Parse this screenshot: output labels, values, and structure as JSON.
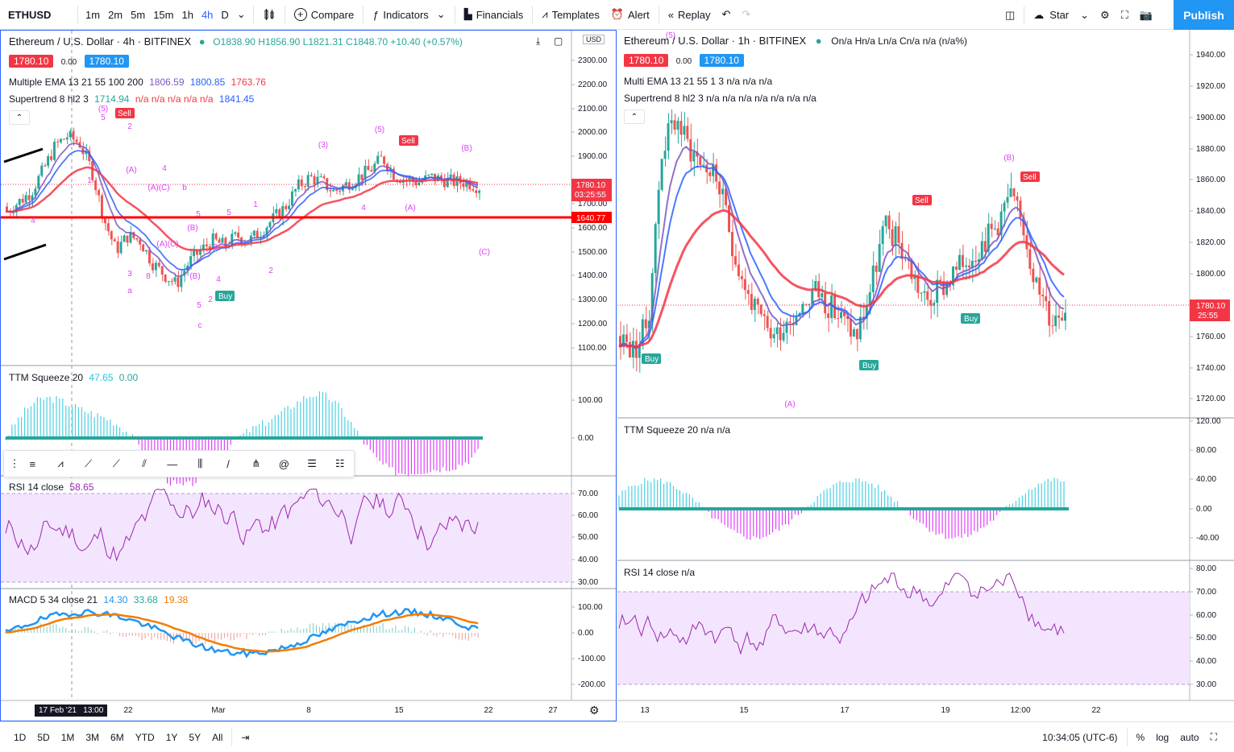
{
  "toolbar": {
    "symbol": "ETHUSD",
    "timeframes": [
      "1m",
      "2m",
      "5m",
      "15m",
      "1h",
      "4h",
      "D"
    ],
    "active_timeframe": "4h",
    "compare": "Compare",
    "indicators": "Indicators",
    "financials": "Financials",
    "templates": "Templates",
    "alert": "Alert",
    "replay": "Replay",
    "star": "Star",
    "publish": "Publish"
  },
  "left_chart": {
    "title": "Ethereum / U.S. Dollar · 4h · BITFINEX",
    "ohlc": "O1838.90 H1856.90 L1821.31 C1848.70 +10.40 (+0.57%)",
    "bid": "1780.10",
    "spread": "0.00",
    "ask": "1780.10",
    "ema_label": "Multiple EMA 13 21 55 100 200",
    "ema_values": [
      "1806.59",
      "1800.85",
      "1763.76"
    ],
    "supertrend_label": "Supertrend 8 hl2 3",
    "supertrend_values": [
      "1714.94",
      "n/a n/a n/a n/a n/a",
      "1841.45"
    ],
    "price_axis": [
      "2300.00",
      "2200.00",
      "2100.00",
      "2000.00",
      "1900.00",
      "1700.00",
      "1600.00",
      "1500.00",
      "1400.00",
      "1300.00",
      "1200.00",
      "1100.00"
    ],
    "axis_currency": "USD",
    "price_label": "1780.10",
    "countdown": "03:25:55",
    "hline_label": "1640.77",
    "ttm_label": "TTM Squeeze 20",
    "ttm_values": [
      "47.65",
      "0.00"
    ],
    "ttm_axis": [
      "100.00",
      "0.00"
    ],
    "rsi_label": "RSI 14 close",
    "rsi_value": "58.65",
    "rsi_axis": [
      "70.00",
      "60.00",
      "50.00",
      "40.00",
      "30.00"
    ],
    "macd_label": "MACD 5 34 close 21",
    "macd_values": [
      "14.30",
      "33.68",
      "19.38"
    ],
    "macd_axis": [
      "100.00",
      "0.00",
      "-100.00",
      "-200.00"
    ],
    "time_axis": [
      "22",
      "Mar",
      "8",
      "15",
      "22",
      "27"
    ],
    "crosshair_time": "17 Feb '21   13:00",
    "annotations": {
      "sell": "Sell",
      "buy": "Buy",
      "waves": [
        "(5)",
        "5",
        "2",
        "(A)",
        "4",
        "b",
        "(A)(C)",
        "(B)",
        "(A)(C)",
        "3",
        "4",
        "(B)",
        "3",
        "8",
        "a",
        "5",
        "c",
        "2",
        "(5)",
        "(3)",
        "4",
        "(A)",
        "1",
        "2",
        "5",
        "(B)",
        "(C)",
        "1",
        "4",
        "5"
      ]
    }
  },
  "right_chart": {
    "title": "Ethereum / U.S. Dollar · 1h · BITFINEX",
    "ohlc": "On/a Hn/a Ln/a Cn/a n/a (n/a%)",
    "bid": "1780.10",
    "spread": "0.00",
    "ask": "1780.10",
    "ema_label": "Multi EMA 13 21 55 1 3  n/a n/a n/a",
    "supertrend_label": "Supertrend 8 hl2 3  n/a n/a n/a n/a n/a n/a n/a",
    "price_axis": [
      "1940.00",
      "1920.00",
      "1900.00",
      "1880.00",
      "1860.00",
      "1840.00",
      "1820.00",
      "1800.00",
      "1760.00",
      "1740.00",
      "1720.00"
    ],
    "price_label": "1780.10",
    "countdown": "25:55",
    "ttm_label": "TTM Squeeze 20  n/a n/a",
    "ttm_axis": [
      "120.00",
      "80.00",
      "40.00",
      "0.00",
      "-40.00"
    ],
    "rsi_label": "RSI 14 close  n/a",
    "rsi_axis": [
      "80.00",
      "70.00",
      "60.00",
      "50.00",
      "40.00",
      "30.00"
    ],
    "time_axis": [
      "13",
      "15",
      "17",
      "19",
      "12:00",
      "22"
    ],
    "annotations": {
      "sell": "Sell",
      "buy": "Buy",
      "waves": [
        "(5)",
        "(B)",
        "(A)"
      ]
    }
  },
  "bottombar": {
    "ranges": [
      "1D",
      "5D",
      "1M",
      "3M",
      "6M",
      "YTD",
      "1Y",
      "5Y",
      "All"
    ],
    "clock": "10:34:05 (UTC-6)",
    "percent": "%",
    "log": "log",
    "auto": "auto"
  },
  "colors": {
    "accent": "#2962ff",
    "publish": "#2196f3",
    "up": "#26a69a",
    "down": "#ef5350",
    "ema_fast": "#7e57c2",
    "ema_mid": "#2962ff",
    "ema_slow": "#f23645",
    "rsi_line": "#9c27b0",
    "rsi_band": "#f3e5fd",
    "macd_line": "#2196f3",
    "signal_line": "#f57c00",
    "hline": "#ff0000",
    "bid_box": "#f23645",
    "ask_box": "#2196f3",
    "wave_label": "#e040fb"
  }
}
